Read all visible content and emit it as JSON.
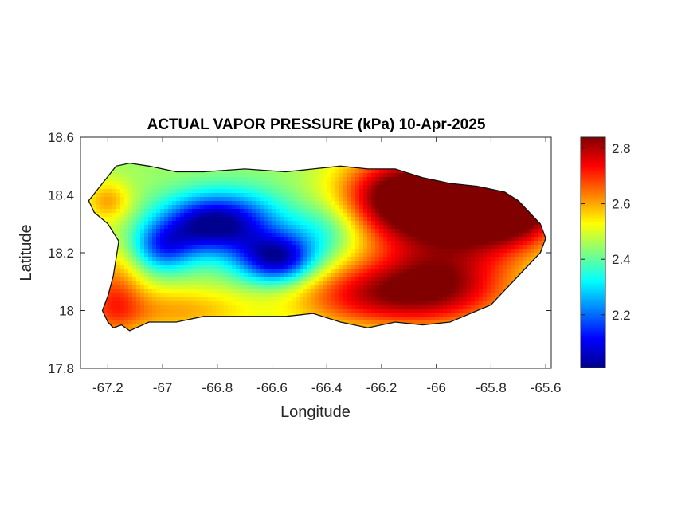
{
  "chart_data": {
    "type": "heatmap",
    "title": "ACTUAL VAPOR PRESSURE (kPa) 10-Apr-2025",
    "xlabel": "Longitude",
    "ylabel": "Latitude",
    "xlim": [
      -67.3,
      -65.58
    ],
    "ylim": [
      17.8,
      18.6
    ],
    "x_ticks": [
      {
        "value": -67.2,
        "label": "-67.2"
      },
      {
        "value": -67.0,
        "label": "-67"
      },
      {
        "value": -66.8,
        "label": "-66.8"
      },
      {
        "value": -66.6,
        "label": "-66.6"
      },
      {
        "value": -66.4,
        "label": "-66.4"
      },
      {
        "value": -66.2,
        "label": "-66.2"
      },
      {
        "value": -66.0,
        "label": "-66"
      },
      {
        "value": -65.8,
        "label": "-65.8"
      },
      {
        "value": -65.6,
        "label": "-65.6"
      }
    ],
    "y_ticks": [
      {
        "value": 18.6,
        "label": "18.6"
      },
      {
        "value": 18.4,
        "label": "18.4"
      },
      {
        "value": 18.2,
        "label": "18.2"
      },
      {
        "value": 18.0,
        "label": "18"
      },
      {
        "value": 17.8,
        "label": "17.8"
      }
    ],
    "colorbar": {
      "colormap": "jet",
      "limits": [
        2.01,
        2.84
      ],
      "ticks": [
        {
          "value": 2.2,
          "label": "2.2"
        },
        {
          "value": 2.4,
          "label": "2.4"
        },
        {
          "value": 2.6,
          "label": "2.6"
        },
        {
          "value": 2.8,
          "label": "2.8"
        }
      ]
    },
    "grid": false,
    "region_outline": {
      "lon": [
        -67.27,
        -67.22,
        -67.17,
        -67.12,
        -67.05,
        -66.95,
        -66.85,
        -66.7,
        -66.55,
        -66.45,
        -66.35,
        -66.25,
        -66.15,
        -66.05,
        -65.95,
        -65.85,
        -65.75,
        -65.7,
        -65.66,
        -65.62,
        -65.6,
        -65.62,
        -65.66,
        -65.7,
        -65.75,
        -65.8,
        -65.85,
        -65.9,
        -65.95,
        -66.05,
        -66.15,
        -66.25,
        -66.35,
        -66.45,
        -66.55,
        -66.65,
        -66.75,
        -66.85,
        -66.95,
        -67.05,
        -67.12,
        -67.15,
        -67.18,
        -67.2,
        -67.22,
        -67.2,
        -67.18,
        -67.17,
        -67.16,
        -67.2,
        -67.25
      ],
      "lat": [
        18.38,
        18.44,
        18.5,
        18.51,
        18.5,
        18.48,
        18.48,
        18.49,
        18.48,
        18.49,
        18.5,
        18.49,
        18.49,
        18.46,
        18.44,
        18.43,
        18.41,
        18.38,
        18.34,
        18.3,
        18.25,
        18.2,
        18.16,
        18.12,
        18.07,
        18.02,
        18.0,
        17.98,
        17.96,
        17.95,
        17.96,
        17.94,
        17.96,
        17.99,
        17.98,
        17.98,
        17.98,
        17.98,
        17.96,
        17.96,
        17.93,
        17.95,
        17.94,
        17.96,
        18.0,
        18.05,
        18.12,
        18.18,
        18.24,
        18.3,
        18.34
      ]
    },
    "value_field": {
      "base": 2.45,
      "anomalies": [
        {
          "lon": -66.85,
          "lat": 18.3,
          "sigma_lon": 0.12,
          "sigma_lat": 0.07,
          "delta": -0.35
        },
        {
          "lon": -66.58,
          "lat": 18.18,
          "sigma_lon": 0.1,
          "sigma_lat": 0.06,
          "delta": -0.4
        },
        {
          "lon": -67.0,
          "lat": 18.22,
          "sigma_lon": 0.08,
          "sigma_lat": 0.06,
          "delta": -0.25
        },
        {
          "lon": -66.7,
          "lat": 18.3,
          "sigma_lon": 0.12,
          "sigma_lat": 0.08,
          "delta": -0.2
        },
        {
          "lon": -66.4,
          "lat": 18.28,
          "sigma_lon": 0.1,
          "sigma_lat": 0.07,
          "delta": -0.12
        },
        {
          "lon": -65.72,
          "lat": 18.37,
          "sigma_lon": 0.15,
          "sigma_lat": 0.1,
          "delta": 0.42
        },
        {
          "lon": -65.95,
          "lat": 18.35,
          "sigma_lon": 0.2,
          "sigma_lat": 0.12,
          "delta": 0.35
        },
        {
          "lon": -66.15,
          "lat": 18.4,
          "sigma_lon": 0.15,
          "sigma_lat": 0.1,
          "delta": 0.3
        },
        {
          "lon": -66.0,
          "lat": 18.08,
          "sigma_lon": 0.2,
          "sigma_lat": 0.1,
          "delta": 0.35
        },
        {
          "lon": -66.3,
          "lat": 18.05,
          "sigma_lon": 0.18,
          "sigma_lat": 0.08,
          "delta": 0.2
        },
        {
          "lon": -67.18,
          "lat": 18.05,
          "sigma_lon": 0.08,
          "sigma_lat": 0.12,
          "delta": 0.2
        },
        {
          "lon": -66.95,
          "lat": 18.0,
          "sigma_lon": 0.2,
          "sigma_lat": 0.06,
          "delta": 0.15
        },
        {
          "lon": -67.2,
          "lat": 18.38,
          "sigma_lon": 0.06,
          "sigma_lat": 0.05,
          "delta": 0.15
        }
      ]
    }
  }
}
